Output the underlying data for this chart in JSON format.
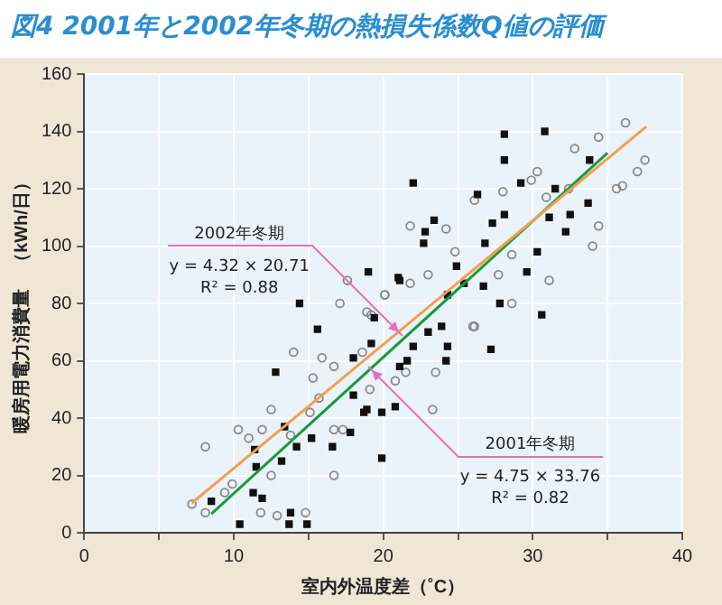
{
  "chart_data": {
    "type": "scatter",
    "title": "図4  2001年と2002年冬期の熱損失係数Q値の評価",
    "xlabel": "室内外温度差（˚C）",
    "ylabel": "暖房用電力消費量　（kWh/日）",
    "xlim": [
      0,
      40
    ],
    "xticks": [
      0,
      {
        "value": 5,
        "label": null
      },
      10,
      {
        "value": 15,
        "label": null
      },
      20,
      {
        "value": 25,
        "label": null
      },
      30,
      {
        "value": 35,
        "label": null
      },
      40
    ],
    "ylim": [
      0,
      160
    ],
    "yticks": [
      0,
      20,
      40,
      60,
      80,
      100,
      120,
      140,
      160
    ],
    "grid": true,
    "series": [
      {
        "type": "scatter",
        "marker": "square",
        "color": "#111111",
        "x": [
          19.0,
          14.4,
          15.6,
          19.4,
          21,
          28.1,
          30.8,
          28.1,
          22,
          22.8,
          23.4,
          22.7,
          26.3,
          29.2,
          31.5,
          33.8,
          33.7,
          30.3,
          29.6,
          30.6,
          27.8,
          26.8,
          24.9,
          25.4,
          26.7,
          24.3,
          21.1,
          23.9,
          32.2,
          32.5,
          31.1,
          28.1,
          27.3,
          12.8,
          10.4,
          8.5,
          11.4,
          11.5,
          11.3,
          11.9,
          13.8,
          13.7,
          14.9,
          13.2,
          13.4,
          14.2,
          15.2,
          16.6,
          17.8,
          18,
          18.7,
          19.9,
          19.9,
          20.8,
          21.1,
          19.2,
          18.9,
          27.2,
          21.6,
          22,
          23,
          24.2,
          24.3,
          18
        ],
        "values": [
          91,
          80,
          71,
          75,
          89,
          139,
          140,
          130,
          122,
          105,
          109,
          101,
          118,
          122,
          120,
          130,
          115,
          98,
          91,
          76,
          80,
          101,
          93,
          87,
          86,
          83,
          88,
          72,
          105,
          111,
          110,
          111,
          108,
          56,
          3,
          11,
          29,
          23,
          14,
          12,
          7,
          3,
          3,
          25,
          37,
          30,
          33,
          30,
          35,
          61,
          42,
          26,
          42,
          44,
          58,
          66,
          43,
          64,
          60,
          65,
          70,
          60,
          65,
          48
        ]
      },
      {
        "type": "scatter",
        "marker": "circle",
        "color": "#888888",
        "x": [
          8.1,
          7.2,
          8.1,
          10.3,
          9.4,
          9.9,
          11.8,
          12.9,
          14.8,
          12.5,
          12.5,
          11.9,
          14,
          15.3,
          15.7,
          15.9,
          16.7,
          16.7,
          16.7,
          17.3,
          18.6,
          19.1,
          20.8,
          15.1,
          13.8,
          11,
          36.2,
          37.5,
          37,
          34.4,
          32.8,
          35.6,
          36,
          34.4,
          34,
          30.3,
          31.1,
          28.6,
          27.7,
          26.1,
          28,
          24.2,
          21.8,
          24.8,
          23,
          21.8,
          20.1,
          18.9,
          26.1,
          28.6,
          32.4,
          29.9,
          30.9,
          17.1,
          17.6,
          20.1,
          19.2,
          23.3,
          23.5,
          21.5,
          26
        ],
        "values": [
          30,
          10,
          7,
          36,
          14,
          17,
          7,
          6,
          7,
          20,
          43,
          36,
          63,
          54,
          47,
          61,
          58,
          20,
          36,
          36,
          63,
          50,
          53,
          42,
          34,
          33,
          143,
          130,
          126,
          138,
          134,
          120,
          121,
          107,
          100,
          126,
          88,
          80,
          90,
          116,
          119,
          106,
          107,
          98,
          90,
          87,
          83,
          77,
          72,
          97,
          120,
          123,
          117,
          80,
          88,
          83,
          76,
          43,
          56,
          56,
          72
        ]
      },
      {
        "type": "line",
        "marker": "none",
        "color": "#f0a050",
        "x": [
          7.2,
          37.6
        ],
        "values": [
          10.4,
          141.7
        ]
      },
      {
        "type": "line",
        "marker": "none",
        "color": "#1a9a3a",
        "x": [
          8.5,
          35
        ],
        "values": [
          6.6,
          132.5
        ]
      }
    ],
    "annotations": [
      {
        "text": "2002年冬期\ny = 4.32 × 20.71\nR² = 0.88",
        "x": 21,
        "y": 70
      },
      {
        "text": "2001年冬期\ny = 4.75 × 33.76\nR² = 0.82",
        "x": 19.2,
        "y": 57
      }
    ]
  }
}
